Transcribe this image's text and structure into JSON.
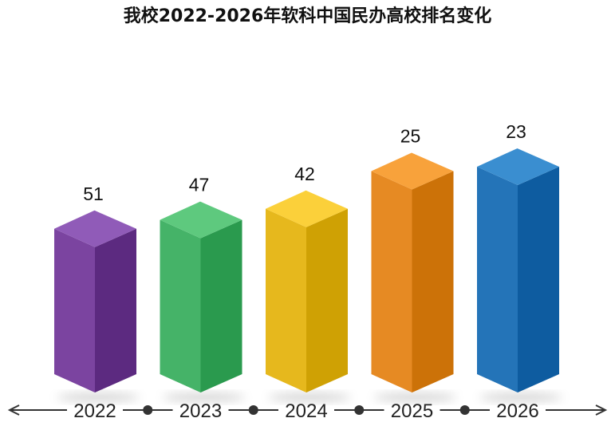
{
  "chart_data": {
    "type": "bar",
    "title": "我校2022-2026年软科中国民办高校排名变化",
    "categories": [
      "2022",
      "2023",
      "2024",
      "2025",
      "2026"
    ],
    "values": [
      51,
      47,
      42,
      25,
      23
    ],
    "colors": [
      {
        "front": "#7b44a0",
        "side": "#5c2a80",
        "top": "#905bb8"
      },
      {
        "front": "#45b368",
        "side": "#2a9a4e",
        "top": "#5ec97e"
      },
      {
        "front": "#e6b81d",
        "side": "#cfa104",
        "top": "#fbd03a"
      },
      {
        "front": "#e68a23",
        "side": "#cc7208",
        "top": "#f8a23b"
      },
      {
        "front": "#2474b8",
        "side": "#0e5ca0",
        "top": "#3a8ed0"
      }
    ],
    "axis_color": "#333333",
    "xlabel": "",
    "ylabel": ""
  }
}
